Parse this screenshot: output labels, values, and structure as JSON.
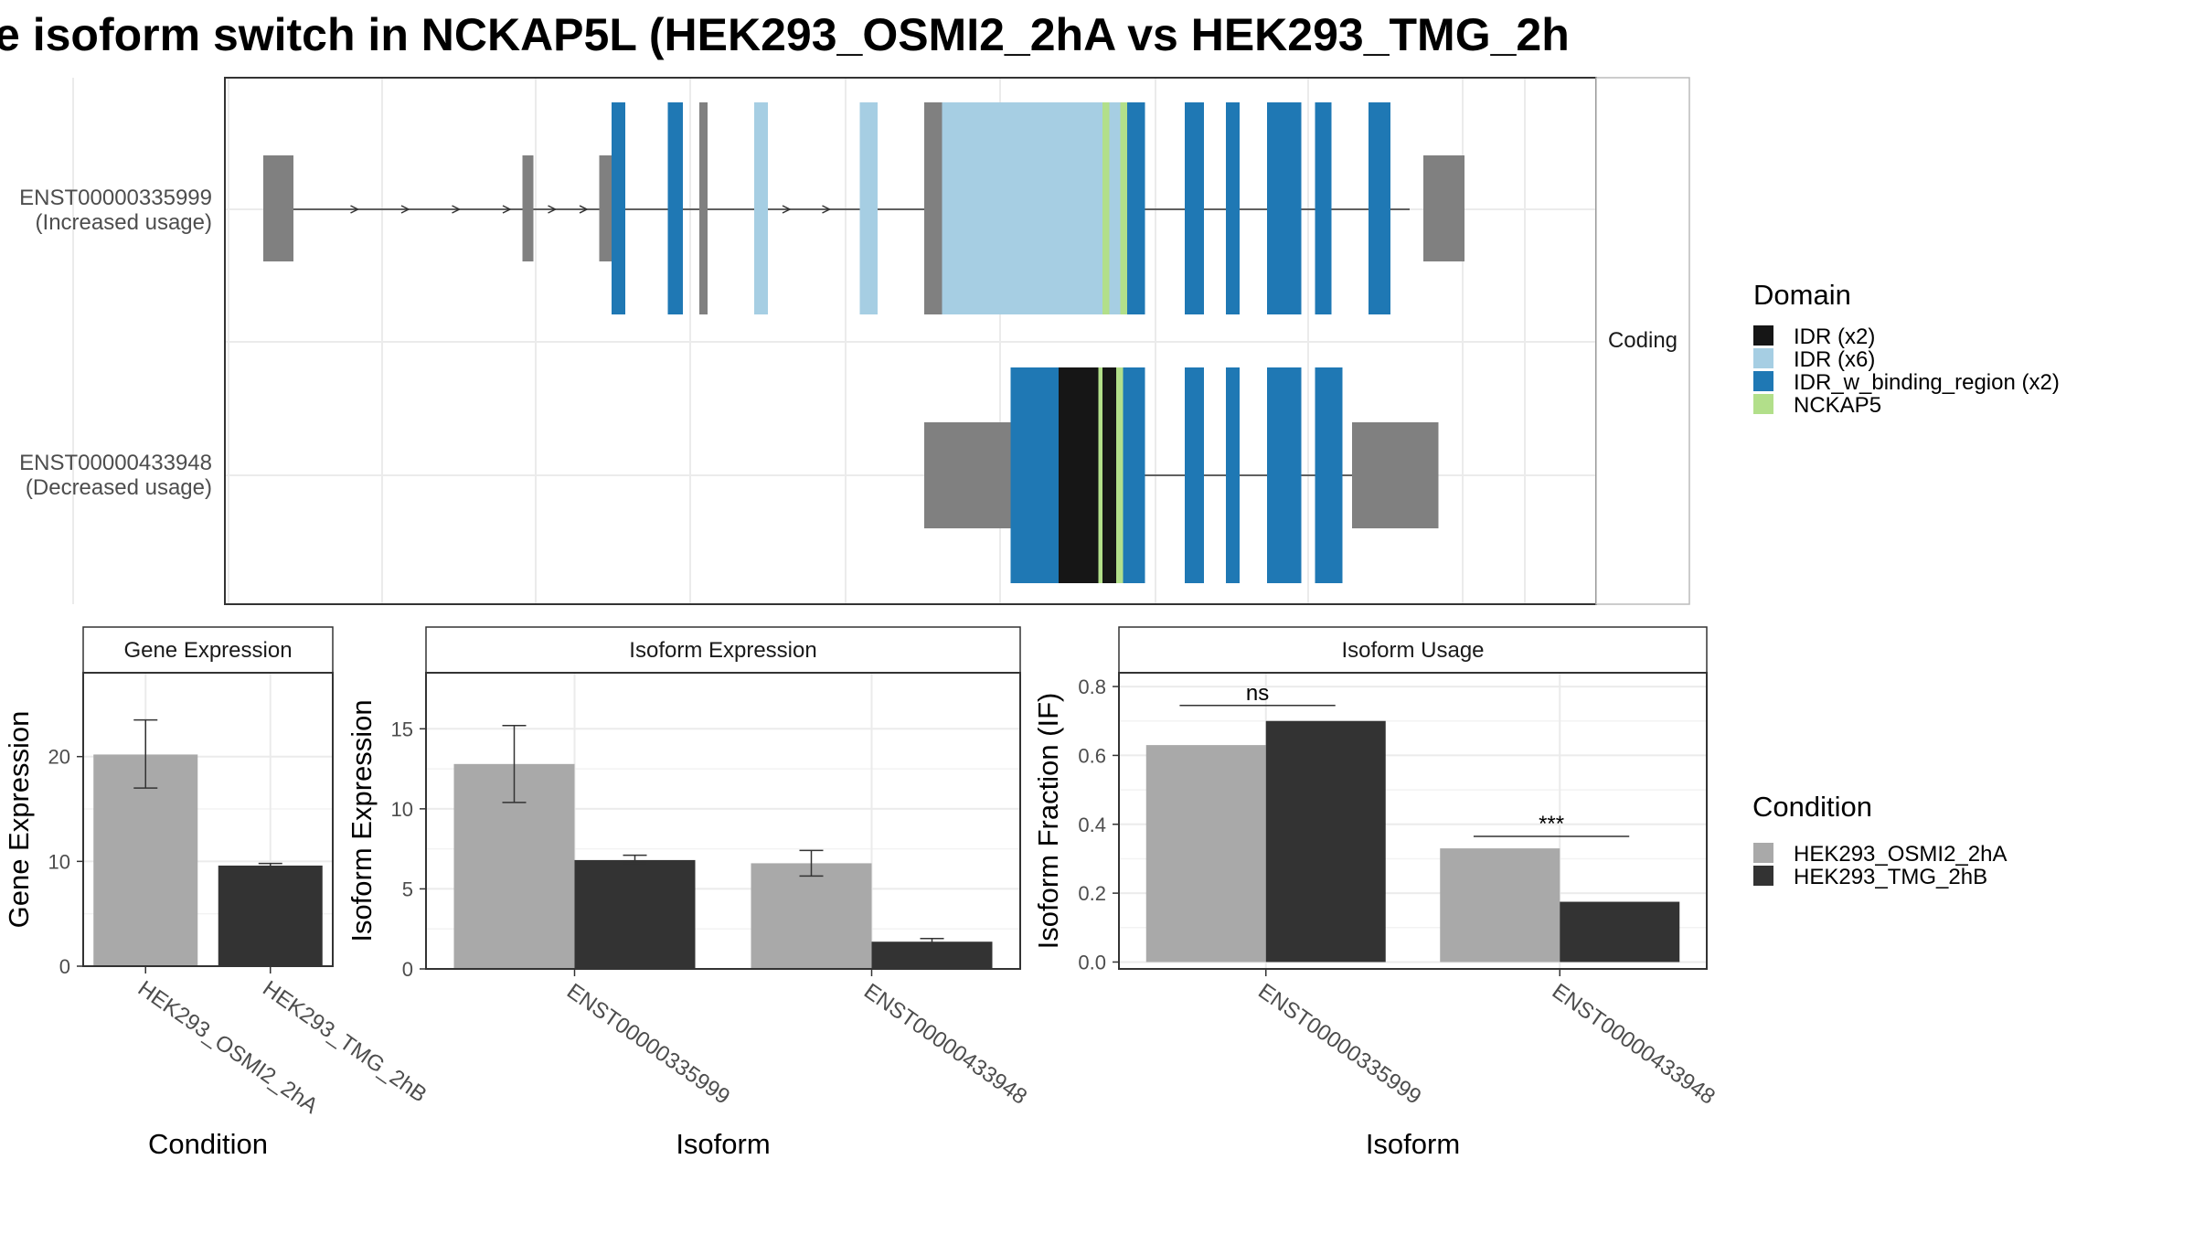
{
  "title": "e isoform switch in NCKAP5L (HEK293_OSMI2_2hA vs HEK293_TMG_2h",
  "structure": {
    "strip_label": "Coding",
    "isoforms": [
      {
        "id": "ENST00000335999",
        "usage": "(Increased usage)",
        "intron_range": [
          28,
          864
        ],
        "utr": [
          [
            28,
            50
          ],
          [
            217,
            225
          ],
          [
            273,
            282
          ],
          [
            874,
            904
          ]
        ],
        "cds": [
          {
            "s": 282,
            "e": 292,
            "c": "IDR_w_binding_region (x2)"
          },
          {
            "s": 323,
            "e": 334,
            "c": "IDR_w_binding_region (x2)"
          },
          {
            "s": 346,
            "e": 352,
            "c": "intron_exon"
          },
          {
            "s": 386,
            "e": 396,
            "c": "IDR (x6)"
          },
          {
            "s": 463,
            "e": 476,
            "c": "IDR (x6)"
          },
          {
            "s": 510,
            "e": 523,
            "c": "intron_exon"
          },
          {
            "s": 523,
            "e": 535,
            "c": "IDR (x6)"
          },
          {
            "s": 535,
            "e": 544,
            "c": "IDR (x6)"
          },
          {
            "s": 544,
            "e": 560,
            "c": "IDR (x6)"
          },
          {
            "s": 560,
            "e": 613,
            "c": "IDR (x6)"
          },
          {
            "s": 613,
            "e": 640,
            "c": "IDR (x6)"
          },
          {
            "s": 640,
            "e": 645,
            "c": "NCKAP5"
          },
          {
            "s": 645,
            "e": 653,
            "c": "IDR (x6)"
          },
          {
            "s": 653,
            "e": 658,
            "c": "NCKAP5"
          },
          {
            "s": 658,
            "e": 671,
            "c": "IDR_w_binding_region (x2)"
          },
          {
            "s": 700,
            "e": 714,
            "c": "IDR_w_binding_region (x2)"
          },
          {
            "s": 730,
            "e": 740,
            "c": "IDR_w_binding_region (x2)"
          },
          {
            "s": 760,
            "e": 785,
            "c": "IDR_w_binding_region (x2)"
          },
          {
            "s": 795,
            "e": 807,
            "c": "IDR_w_binding_region (x2)"
          },
          {
            "s": 834,
            "e": 850,
            "c": "IDR_w_binding_region (x2)"
          }
        ],
        "arrows": [
          95,
          132,
          169,
          206,
          239,
          262,
          410,
          439
        ]
      },
      {
        "id": "ENST00000433948",
        "usage": "(Decreased usage)",
        "intron_range": [
          671,
          834
        ],
        "utr": [
          [
            510,
            573
          ],
          [
            822,
            885
          ]
        ],
        "cds": [
          {
            "s": 573,
            "e": 608,
            "c": "IDR_w_binding_region (x2)"
          },
          {
            "s": 608,
            "e": 637,
            "c": "IDR (x2)"
          },
          {
            "s": 637,
            "e": 640,
            "c": "NCKAP5"
          },
          {
            "s": 640,
            "e": 650,
            "c": "IDR (x2)"
          },
          {
            "s": 650,
            "e": 655,
            "c": "NCKAP5"
          },
          {
            "s": 655,
            "e": 671,
            "c": "IDR_w_binding_region (x2)"
          },
          {
            "s": 700,
            "e": 714,
            "c": "IDR_w_binding_region (x2)"
          },
          {
            "s": 730,
            "e": 740,
            "c": "IDR_w_binding_region (x2)"
          },
          {
            "s": 760,
            "e": 785,
            "c": "IDR_w_binding_region (x2)"
          },
          {
            "s": 795,
            "e": 815,
            "c": "IDR_w_binding_region (x2)"
          }
        ],
        "arrows": []
      }
    ]
  },
  "domain_legend": {
    "title": "Domain",
    "items": [
      {
        "label": "IDR (x2)",
        "color": "#161616"
      },
      {
        "label": "IDR (x6)",
        "color": "#A6CEE3"
      },
      {
        "label": "IDR_w_binding_region (x2)",
        "color": "#1F78B4"
      },
      {
        "label": "NCKAP5",
        "color": "#B2DF8A"
      }
    ]
  },
  "condition_legend": {
    "title": "Condition",
    "items": [
      {
        "label": "HEK293_OSMI2_2hA",
        "color": "#A9A9A9"
      },
      {
        "label": "HEK293_TMG_2hB",
        "color": "#333333"
      }
    ]
  },
  "chart_data": [
    {
      "type": "bar",
      "title": "Gene Expression",
      "xlabel": "Condition",
      "ylabel": "Gene Expression",
      "ylim": [
        0,
        28
      ],
      "yticks": [
        0,
        10,
        20
      ],
      "categories": [
        "HEK293_OSMI2_2hA",
        "HEK293_TMG_2hB"
      ],
      "bars": [
        {
          "cat": 0,
          "series": 0,
          "value": 20.2,
          "err": [
            17.0,
            23.5
          ]
        },
        {
          "cat": 1,
          "series": 1,
          "value": 9.6,
          "err": [
            9.4,
            9.8
          ]
        }
      ]
    },
    {
      "type": "bar",
      "title": "Isoform Expression",
      "xlabel": "Isoform",
      "ylabel": "Isoform Expression",
      "ylim": [
        0,
        18.5
      ],
      "yticks": [
        0,
        5,
        10,
        15
      ],
      "categories": [
        "ENST00000335999",
        "ENST00000433948"
      ],
      "series": [
        {
          "name": "HEK293_OSMI2_2hA",
          "values": [
            12.8,
            6.6
          ],
          "err": [
            [
              10.4,
              15.2
            ],
            [
              5.8,
              7.4
            ]
          ]
        },
        {
          "name": "HEK293_TMG_2hB",
          "values": [
            6.8,
            1.7
          ],
          "err": [
            [
              6.6,
              7.1
            ],
            [
              1.6,
              1.9
            ]
          ]
        }
      ]
    },
    {
      "type": "bar",
      "title": "Isoform Usage",
      "xlabel": "Isoform",
      "ylabel": "Isoform Fraction (IF)",
      "ylim": [
        -0.02,
        0.84
      ],
      "yticks": [
        0.0,
        0.2,
        0.4,
        0.6,
        0.8
      ],
      "ytick_labels": [
        "0.0",
        "0.2",
        "0.4",
        "0.6",
        "0.8"
      ],
      "categories": [
        "ENST00000335999",
        "ENST00000433948"
      ],
      "series": [
        {
          "name": "HEK293_OSMI2_2hA",
          "values": [
            0.63,
            0.33
          ]
        },
        {
          "name": "HEK293_TMG_2hB",
          "values": [
            0.7,
            0.175
          ]
        }
      ],
      "significance": [
        {
          "label": "ns",
          "y": 0.745
        },
        {
          "label": "***",
          "y": 0.365
        }
      ]
    }
  ]
}
